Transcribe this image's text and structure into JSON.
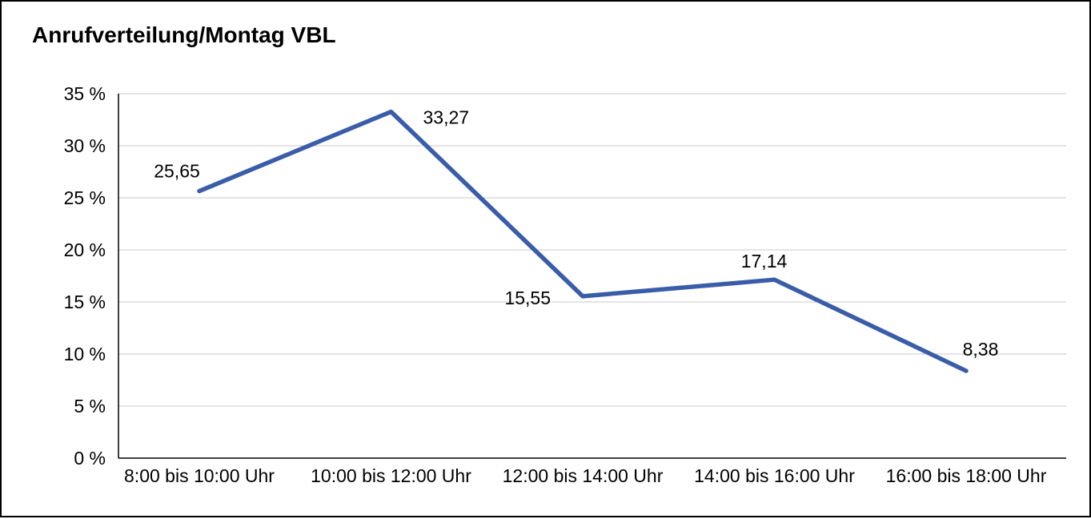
{
  "chart_data": {
    "type": "line",
    "title": "Anrufverteilung/Montag VBL",
    "categories": [
      "8:00 bis 10:00 Uhr",
      "10:00 bis 12:00 Uhr",
      "12:00 bis 14:00 Uhr",
      "14:00 bis 16:00 Uhr",
      "16:00 bis 18:00 Uhr"
    ],
    "values": [
      25.65,
      33.27,
      15.55,
      17.14,
      8.38
    ],
    "data_labels": [
      "25,65",
      "33,27",
      "15,55",
      "17,14",
      "8,38"
    ],
    "y_ticks": [
      {
        "value": 0,
        "label": "0 %"
      },
      {
        "value": 5,
        "label": "5 %"
      },
      {
        "value": 10,
        "label": "10 %"
      },
      {
        "value": 15,
        "label": "15 %"
      },
      {
        "value": 20,
        "label": "20 %"
      },
      {
        "value": 25,
        "label": "25 %"
      },
      {
        "value": 30,
        "label": "30 %"
      },
      {
        "value": 35,
        "label": "35 %"
      }
    ],
    "ylim": [
      0,
      35
    ],
    "y_step": 5,
    "grid": true,
    "legend_position": "none",
    "colors": {
      "line": "#3A5DA9",
      "grid": "#c9c9c9",
      "axis": "#000000",
      "text": "#000000"
    }
  }
}
